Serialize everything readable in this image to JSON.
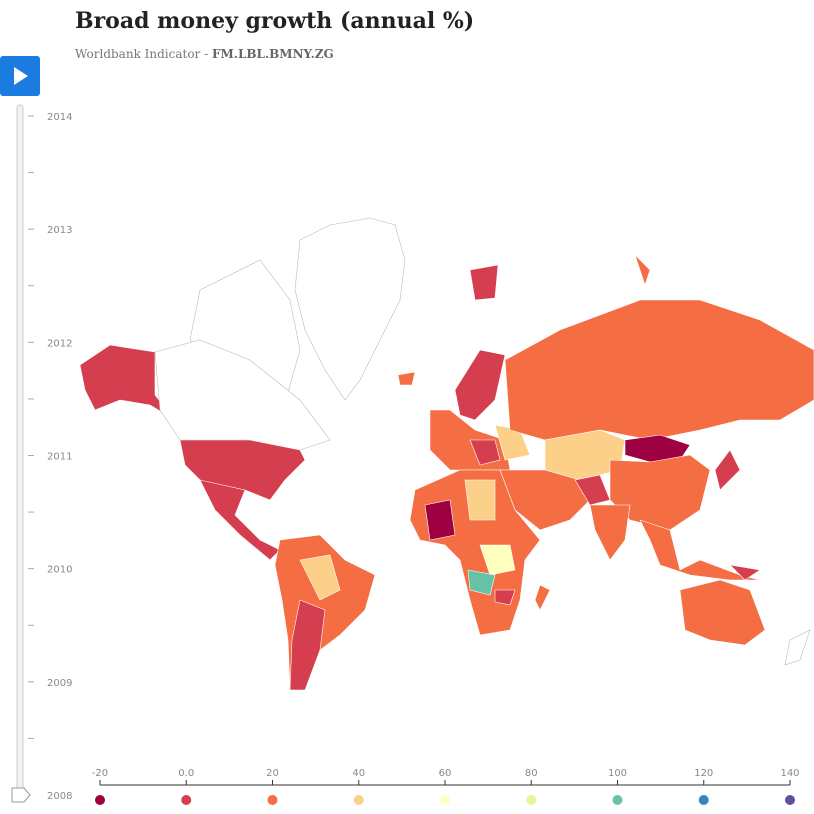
{
  "header": {
    "title": "Broad money growth (annual %)",
    "subtitle_prefix": "Worldbank Indicator - ",
    "indicator_code": "FM.LBL.BMNY.ZG"
  },
  "slider": {
    "years": [
      "2014",
      "2013",
      "2012",
      "2011",
      "2010",
      "2009",
      "2008"
    ],
    "current_index": 6
  },
  "legend": {
    "ticks": [
      "-20",
      "0.0",
      "20",
      "40",
      "60",
      "80",
      "100",
      "120",
      "140"
    ],
    "colors": [
      "#9e0142",
      "#d53e4f",
      "#f46d43",
      "#fdd08a",
      "#ffffbf",
      "#e6f598",
      "#66c2a5",
      "#3288bd",
      "#5e4fa2"
    ]
  }
}
